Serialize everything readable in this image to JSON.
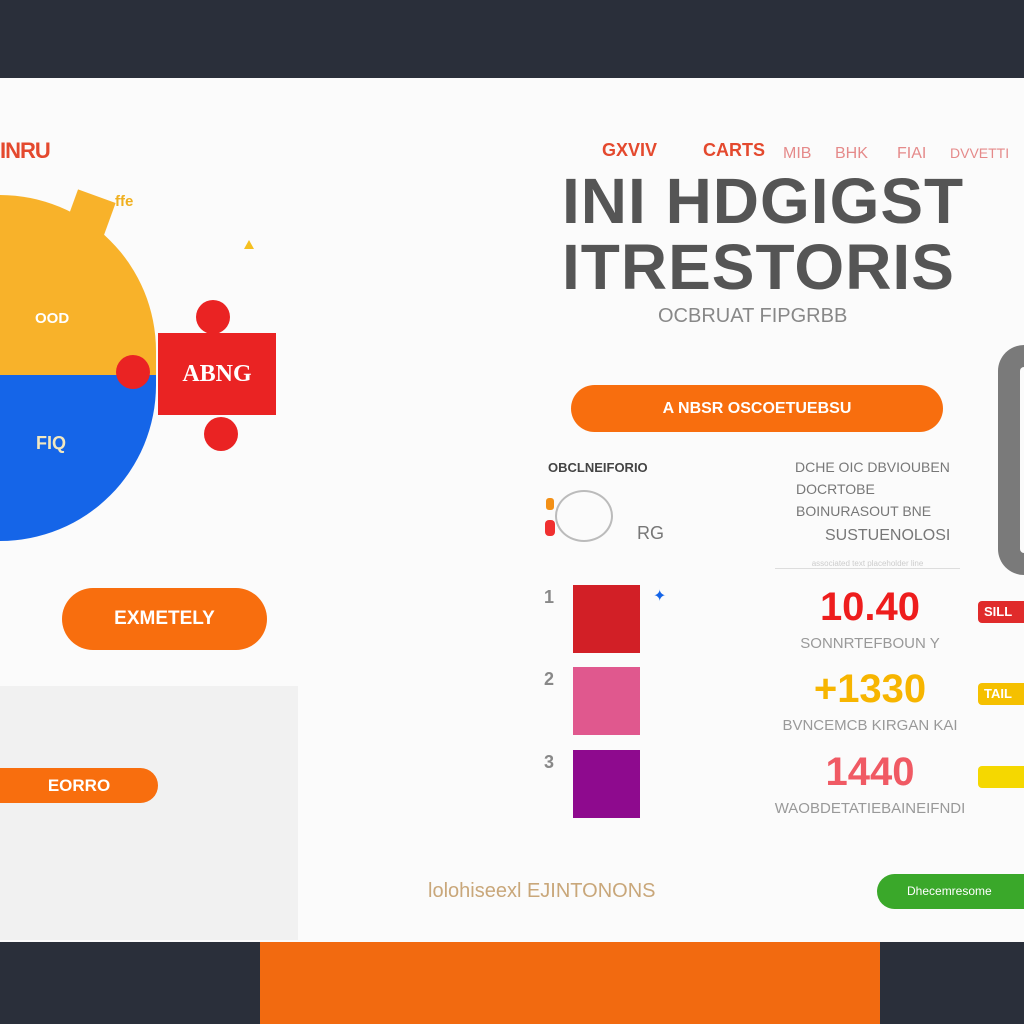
{
  "colors": {
    "background": "#2a2f3a",
    "card": "#fbfbfb",
    "accent_orange": "#f86e0e",
    "pie_yellow": "#f8b22a",
    "pie_blue": "#1565e8",
    "puzzle_red": "#ea2323",
    "green": "#3aa82a"
  },
  "left": {
    "brand": "INRU",
    "pie_small_label": "ffe",
    "pie": {
      "top_label": "OOD",
      "bottom_label": "FIQ"
    },
    "puzzle_label": "ABNG",
    "cta_button": "EXMETELY",
    "panel_button": "EORRO"
  },
  "nav": [
    "GXVIV",
    "CARTS",
    "MIB",
    "BHK",
    "FIAI",
    "DVVETTI"
  ],
  "hero": {
    "title_line1": "INI HDGIGST",
    "title_line2": "ITRESTORIS",
    "subtitle": "OCBRUAT FIPGRBB",
    "cta_button": "A NBSR OSCOETUEBSU"
  },
  "section": {
    "heading": "OBCLNEIFORIO",
    "icon_label": "RG",
    "desc_lines": [
      "DCHE OIC DBVIOUBEN",
      "DOCRTOBE",
      "BOINURASOUT BNE",
      "SUSTUENOLOSI"
    ],
    "divider_text": "associated text placeholder line",
    "rows": [
      {
        "index": "1",
        "color": "#d21f26",
        "value": "10.40",
        "value_color": "#ee1d1d",
        "caption": "SONNRTEFBOUN Y",
        "tag": "SILL",
        "tag_color": "#e02b2b"
      },
      {
        "index": "2",
        "color": "#e0588e",
        "value": "+1330",
        "value_color": "#f7b500",
        "caption": "BVNCEMCB KIRGAN KAI",
        "tag": "TAIL",
        "tag_color": "#f5c000"
      },
      {
        "index": "3",
        "color": "#8e0a8e",
        "value": "1440",
        "value_color": "#f05a64",
        "caption": "WAOBDETATIEBAINEIFNDI",
        "tag": "",
        "tag_color": "#f5d800"
      }
    ]
  },
  "footer": {
    "link": "lolohiseexl EJINTONONS",
    "green_button": "Dhecemresome"
  }
}
